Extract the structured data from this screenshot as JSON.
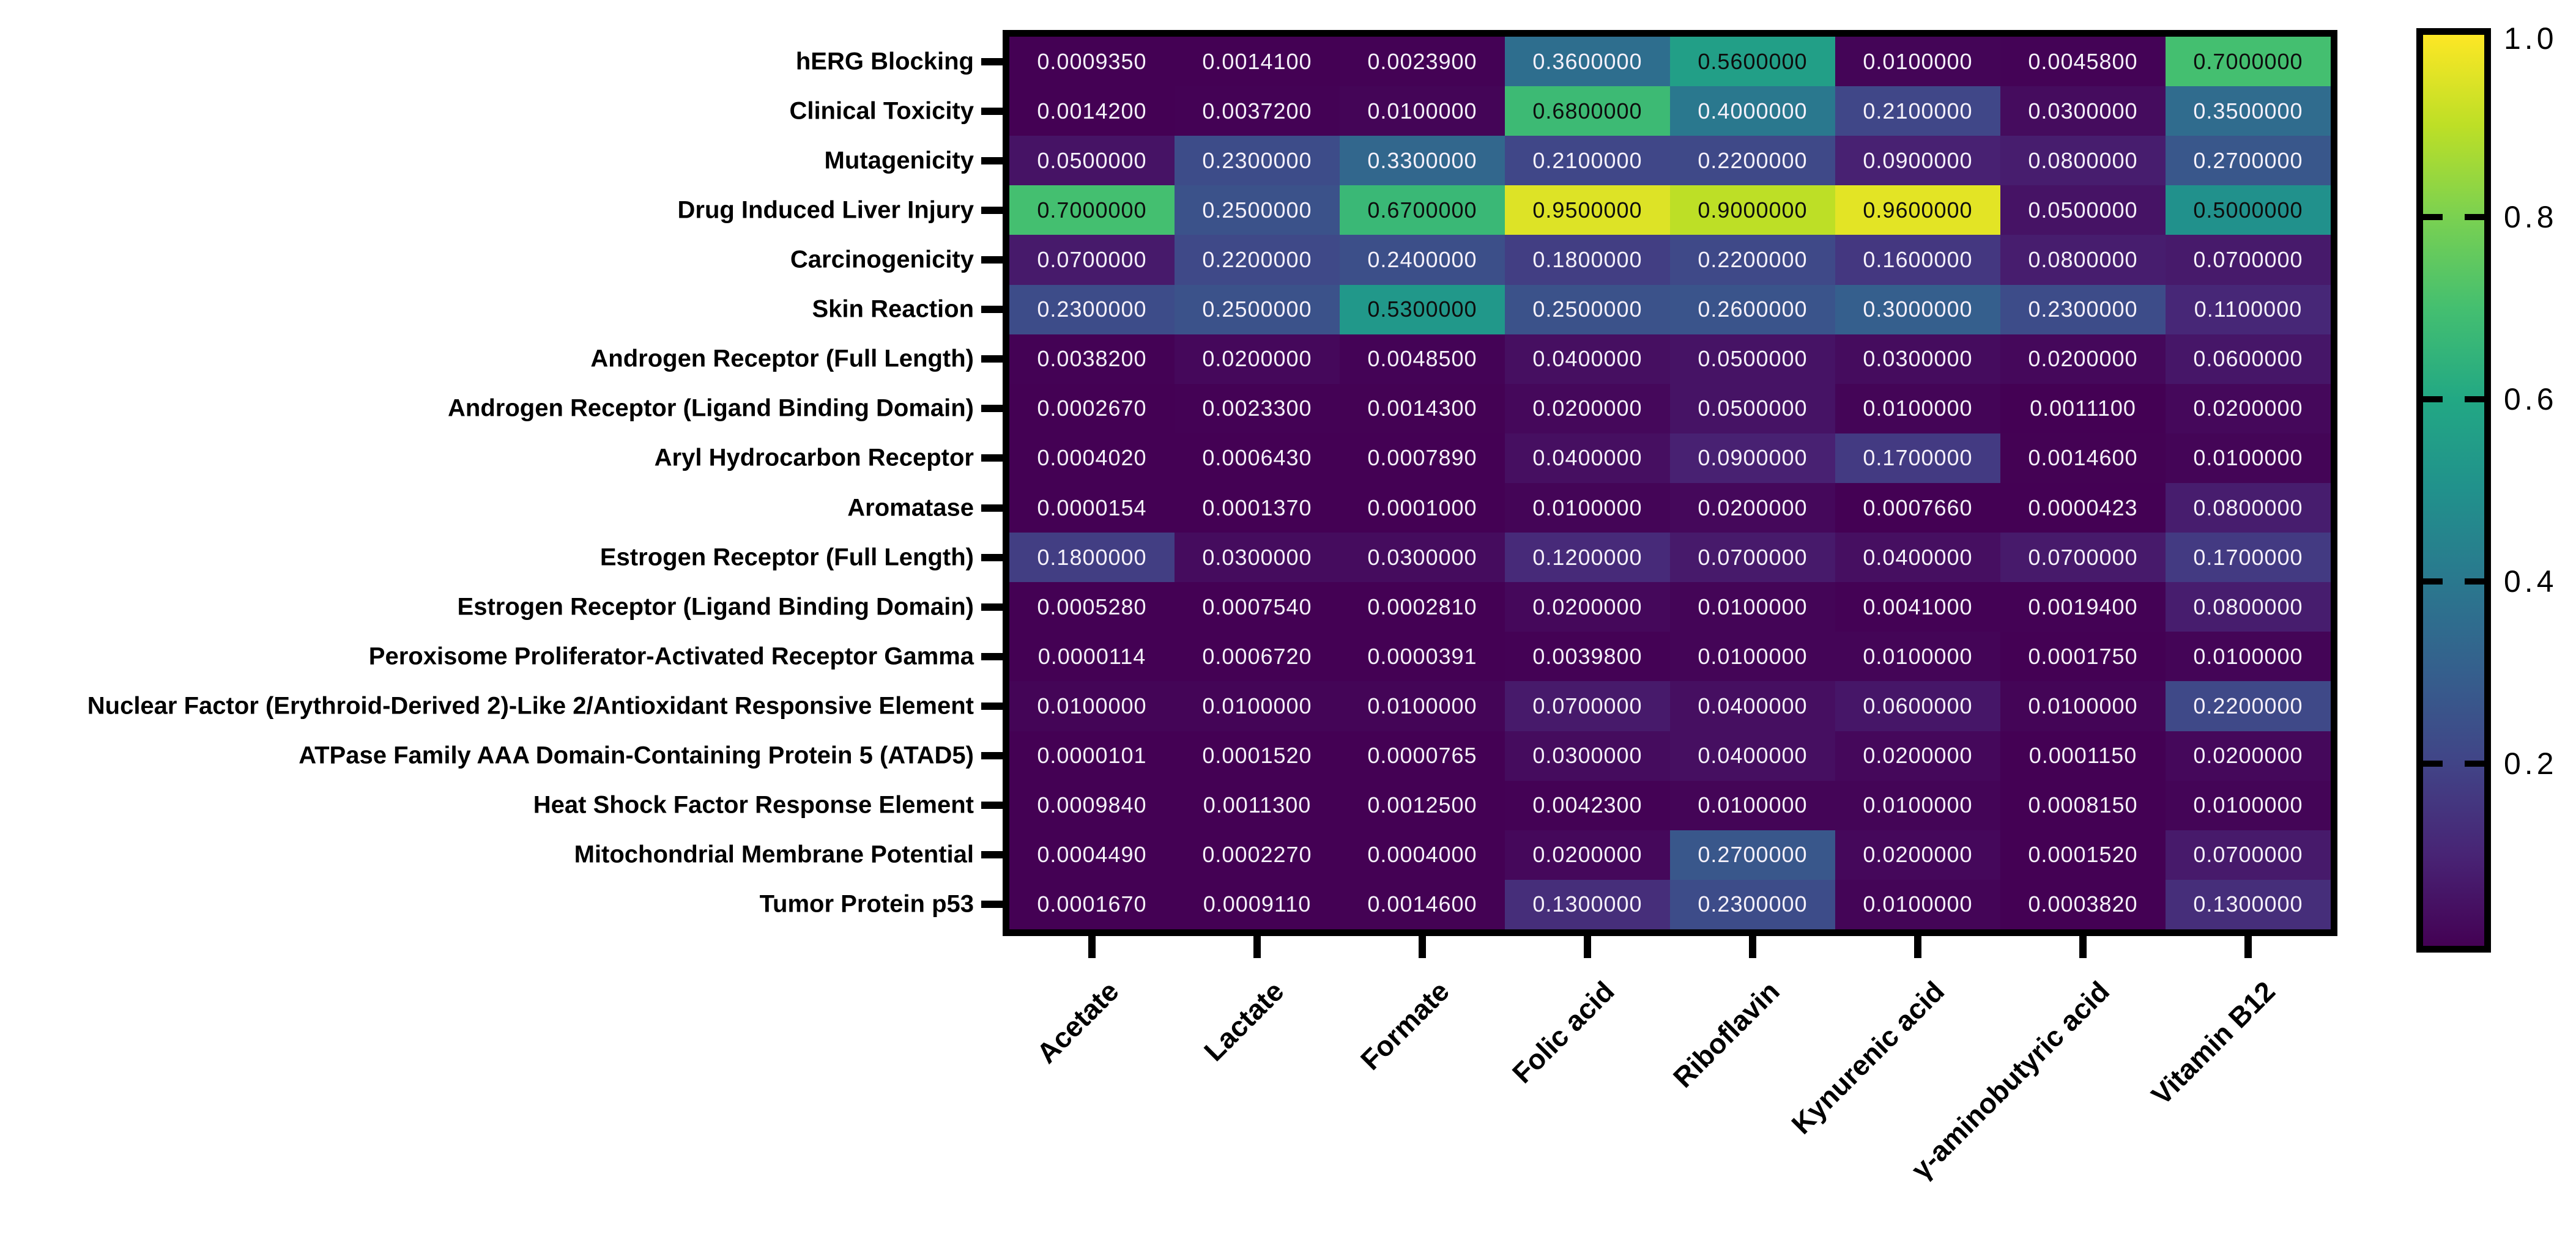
{
  "figure": {
    "background": "#ffffff",
    "spine_color": "#000000",
    "cell_text_light": "#f5f1fa",
    "cell_text_dark": "#0d0d0d"
  },
  "chart_data": {
    "type": "heatmap",
    "colormap": "viridis",
    "vmin": 0.0,
    "vmax": 1.0,
    "grid": "off",
    "legend_position": "right-colorbar",
    "rows": [
      "hERG Blocking",
      "Clinical Toxicity",
      "Mutagenicity",
      "Drug Induced Liver Injury",
      "Carcinogenicity",
      "Skin Reaction",
      "Androgen Receptor (Full Length)",
      "Androgen Receptor (Ligand Binding Domain)",
      "Aryl Hydrocarbon Receptor",
      "Aromatase",
      "Estrogen Receptor (Full Length)",
      "Estrogen Receptor (Ligand Binding Domain)",
      "Peroxisome Proliferator-Activated Receptor Gamma",
      "Nuclear Factor (Erythroid-Derived 2)-Like 2/Antioxidant Responsive Element",
      "ATPase Family AAA Domain-Containing Protein 5 (ATAD5)",
      "Heat Shock Factor Response Element",
      "Mitochondrial Membrane Potential",
      "Tumor Protein p53"
    ],
    "columns": [
      "Acetate",
      "Lactate",
      "Formate",
      "Folic acid",
      "Riboflavin",
      "Kynurenic acid",
      "γ-aminobutyric acid",
      "Vitamin B12"
    ],
    "values": [
      [
        "0.0009350",
        "0.0014100",
        "0.0023900",
        "0.3600000",
        "0.5600000",
        "0.0100000",
        "0.0045800",
        "0.7000000"
      ],
      [
        "0.0014200",
        "0.0037200",
        "0.0100000",
        "0.6800000",
        "0.4000000",
        "0.2100000",
        "0.0300000",
        "0.3500000"
      ],
      [
        "0.0500000",
        "0.2300000",
        "0.3300000",
        "0.2100000",
        "0.2200000",
        "0.0900000",
        "0.0800000",
        "0.2700000"
      ],
      [
        "0.7000000",
        "0.2500000",
        "0.6700000",
        "0.9500000",
        "0.9000000",
        "0.9600000",
        "0.0500000",
        "0.5000000"
      ],
      [
        "0.0700000",
        "0.2200000",
        "0.2400000",
        "0.1800000",
        "0.2200000",
        "0.1600000",
        "0.0800000",
        "0.0700000"
      ],
      [
        "0.2300000",
        "0.2500000",
        "0.5300000",
        "0.2500000",
        "0.2600000",
        "0.3000000",
        "0.2300000",
        "0.1100000"
      ],
      [
        "0.0038200",
        "0.0200000",
        "0.0048500",
        "0.0400000",
        "0.0500000",
        "0.0300000",
        "0.0200000",
        "0.0600000"
      ],
      [
        "0.0002670",
        "0.0023300",
        "0.0014300",
        "0.0200000",
        "0.0500000",
        "0.0100000",
        "0.0011100",
        "0.0200000"
      ],
      [
        "0.0004020",
        "0.0006430",
        "0.0007890",
        "0.0400000",
        "0.0900000",
        "0.1700000",
        "0.0014600",
        "0.0100000"
      ],
      [
        "0.0000154",
        "0.0001370",
        "0.0001000",
        "0.0100000",
        "0.0200000",
        "0.0007660",
        "0.0000423",
        "0.0800000"
      ],
      [
        "0.1800000",
        "0.0300000",
        "0.0300000",
        "0.1200000",
        "0.0700000",
        "0.0400000",
        "0.0700000",
        "0.1700000"
      ],
      [
        "0.0005280",
        "0.0007540",
        "0.0002810",
        "0.0200000",
        "0.0100000",
        "0.0041000",
        "0.0019400",
        "0.0800000"
      ],
      [
        "0.0000114",
        "0.0006720",
        "0.0000391",
        "0.0039800",
        "0.0100000",
        "0.0100000",
        "0.0001750",
        "0.0100000"
      ],
      [
        "0.0100000",
        "0.0100000",
        "0.0100000",
        "0.0700000",
        "0.0400000",
        "0.0600000",
        "0.0100000",
        "0.2200000"
      ],
      [
        "0.0000101",
        "0.0001520",
        "0.0000765",
        "0.0300000",
        "0.0400000",
        "0.0200000",
        "0.0001150",
        "0.0200000"
      ],
      [
        "0.0009840",
        "0.0011300",
        "0.0012500",
        "0.0042300",
        "0.0100000",
        "0.0100000",
        "0.0008150",
        "0.0100000"
      ],
      [
        "0.0004490",
        "0.0002270",
        "0.0004000",
        "0.0200000",
        "0.2700000",
        "0.0200000",
        "0.0001520",
        "0.0700000"
      ],
      [
        "0.0001670",
        "0.0009110",
        "0.0014600",
        "0.1300000",
        "0.2300000",
        "0.0100000",
        "0.0003820",
        "0.1300000"
      ]
    ],
    "colorbar": {
      "tick_labels": [
        "1.0",
        "0.8",
        "0.6",
        "0.4",
        "0.2"
      ],
      "tick_values": [
        1.0,
        0.8,
        0.6,
        0.4,
        0.2
      ],
      "viridis_stops": [
        "#440154",
        "#482475",
        "#414487",
        "#355f8d",
        "#2a788e",
        "#21918c",
        "#22a884",
        "#44bf70",
        "#7ad151",
        "#bddf26",
        "#fde725"
      ]
    }
  }
}
